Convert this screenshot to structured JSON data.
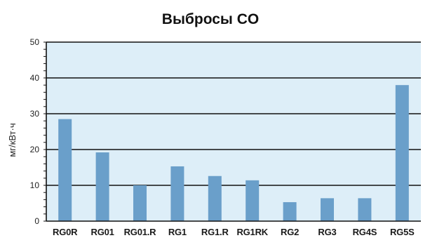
{
  "chart_data": {
    "type": "bar",
    "title": "Выбросы CO",
    "xlabel": "",
    "ylabel": "мг/кВт·ч",
    "ylim": [
      0,
      50
    ],
    "y_ticks": [
      0,
      10,
      20,
      30,
      40,
      50
    ],
    "grid": true,
    "legend": "none",
    "categories": [
      "RG0R",
      "RG01",
      "RG01.R",
      "RG1",
      "RG1.R",
      "RG1RK",
      "RG2",
      "RG3",
      "RG4S",
      "RG5S"
    ],
    "values": [
      28.5,
      19.2,
      10.0,
      15.3,
      12.6,
      11.4,
      5.3,
      6.4,
      6.4,
      38.0
    ],
    "colors": {
      "bar": "#6a9fca",
      "plot_background": "#ddeef8",
      "gridline": "#111111",
      "axis": "#111111"
    }
  }
}
